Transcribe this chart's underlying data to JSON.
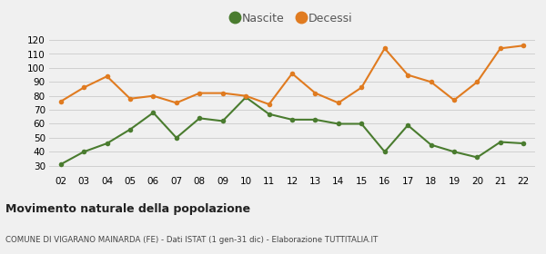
{
  "years": [
    "02",
    "03",
    "04",
    "05",
    "06",
    "07",
    "08",
    "09",
    "10",
    "11",
    "12",
    "13",
    "14",
    "15",
    "16",
    "17",
    "18",
    "19",
    "20",
    "21",
    "22"
  ],
  "nascite": [
    31,
    40,
    46,
    56,
    68,
    50,
    64,
    62,
    79,
    67,
    63,
    63,
    60,
    60,
    40,
    59,
    45,
    40,
    36,
    47,
    46
  ],
  "decessi": [
    76,
    86,
    94,
    78,
    80,
    75,
    82,
    82,
    80,
    74,
    96,
    82,
    75,
    86,
    114,
    95,
    90,
    77,
    90,
    114,
    116
  ],
  "nascite_color": "#4a7c2f",
  "decessi_color": "#e07b20",
  "background_color": "#f0f0f0",
  "grid_color": "#d0d0d0",
  "title": "Movimento naturale della popolazione",
  "subtitle": "COMUNE DI VIGARANO MAINARDA (FE) - Dati ISTAT (1 gen-31 dic) - Elaborazione TUTTITALIA.IT",
  "legend_nascite": "Nascite",
  "legend_decessi": "Decessi",
  "ylim": [
    25,
    125
  ],
  "yticks": [
    30,
    40,
    50,
    60,
    70,
    80,
    90,
    100,
    110,
    120
  ],
  "marker_size": 4,
  "linewidth": 1.5
}
